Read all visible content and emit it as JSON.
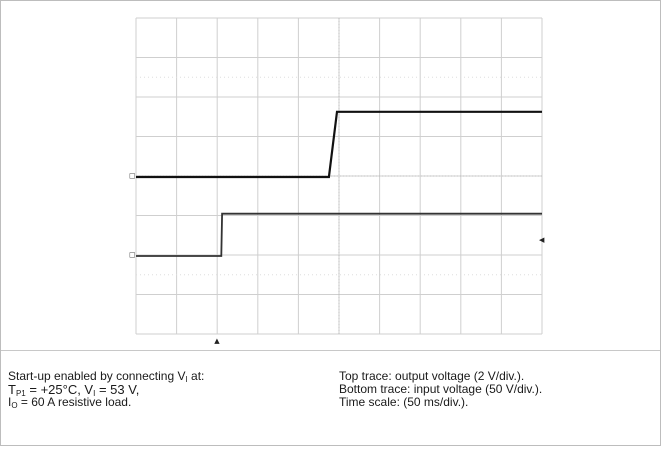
{
  "chart_data": {
    "type": "line",
    "title": "",
    "xlabel": "",
    "ylabel": "",
    "grid": true,
    "x_divisions": 10,
    "y_divisions": 8,
    "series": [
      {
        "role": "top trace",
        "color": "#111111",
        "x": [
          0,
          4.75,
          4.95,
          10
        ],
        "y": [
          0,
          0,
          1.65,
          1.65
        ]
      },
      {
        "role": "bottom trace",
        "color": "#333333",
        "x": [
          0,
          2.1,
          2.12,
          10
        ],
        "y": [
          0,
          0,
          1.07,
          1.07
        ]
      }
    ],
    "markers": {
      "top_ground_symbol": "◻",
      "bottom_ground_symbol": "◻",
      "trigger_position_symbol": "▲",
      "trigger_level_symbol": "◀"
    }
  },
  "caption": {
    "left": {
      "line1_prefix": "Start-up enabled by connecting V",
      "line1_sub": "I",
      "line1_suffix": " at:",
      "line2_a": "T",
      "line2_a_sub": "P1",
      "line2_b": " = +25°C, V",
      "line2_b_sub": "I",
      "line2_c": " = 53 V,",
      "line3_a": "I",
      "line3_a_sub": "O",
      "line3_b": " = 60 A resistive load."
    },
    "right": {
      "line1": "Top trace: output voltage (2 V/div.).",
      "line2": "Bottom trace: input voltage (50 V/div.).",
      "line3": "Time scale: (50 ms/div.)."
    }
  }
}
